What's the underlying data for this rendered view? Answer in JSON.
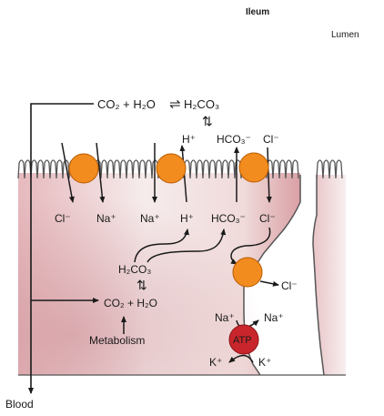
{
  "title": "Ileum",
  "lumen_label": "Lumen",
  "blood_label": "Blood",
  "equations": {
    "top": {
      "left": "CO₂ + H₂O",
      "arrow": "⇌",
      "right": "H₂CO₃"
    },
    "top_dissociation_arrow": "⇅",
    "cell_h2co3": "H₂CO₃",
    "cell_dissociation_arrow": "⇅",
    "cell_co2_h2o": "CO₂ + H₂O",
    "metabolism": "Metabolism"
  },
  "ions": {
    "lumen_h": "H⁺",
    "lumen_hco3": "HCO₃⁻",
    "lumen_cl": "Cl⁻",
    "cell_cl_1": "Cl⁻",
    "cell_na_1": "Na⁺",
    "cell_na_2": "Na⁺",
    "cell_h": "H⁺",
    "cell_hco3": "HCO₃⁻",
    "cell_cl_2": "Cl⁻",
    "basolateral_cl": "Cl⁻",
    "pump_na_in": "Na⁺",
    "pump_na_out": "Na⁺",
    "pump_k_in": "K⁺",
    "pump_k_out": "K⁺"
  },
  "pump_label": "ATP",
  "colors": {
    "transporter": "#f28c1f",
    "transporter_edge": "#b85a00",
    "pump": "#c8262c",
    "cell_fill_dark": "#d9a9ac",
    "cell_fill_light": "#f3e4e4",
    "membrane": "#555555",
    "arrow": "#1a1a1a"
  }
}
